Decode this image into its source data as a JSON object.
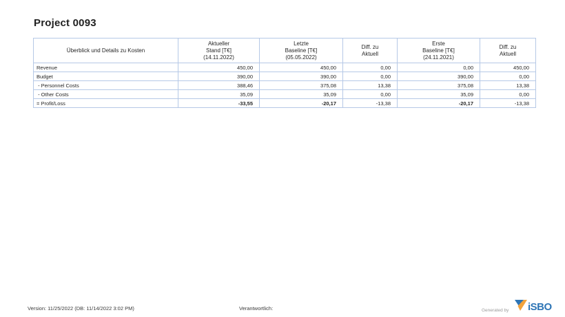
{
  "title": "Project 0093",
  "table": {
    "header": [
      "Überblick und Details zu Kosten",
      "Aktueller\nStand [T€]\n(14.11.2022)",
      "Letzte\nBaseline [T€]\n(05.05.2022)",
      "Diff. zu\nAktuell",
      "Erste\nBaseline [T€]\n(24.11.2021)",
      "Diff. zu\nAktuell"
    ],
    "rows": [
      {
        "label": "Revenue",
        "cells": [
          {
            "text": "450,00"
          },
          {
            "text": "450,00"
          },
          {
            "text": "0,00"
          },
          {
            "text": "0,00"
          },
          {
            "text": "450,00",
            "red": true
          }
        ]
      },
      {
        "label": "Budget",
        "cells": [
          {
            "text": "390,00"
          },
          {
            "text": "390,00"
          },
          {
            "text": "0,00"
          },
          {
            "text": "390,00"
          },
          {
            "text": "0,00"
          }
        ]
      },
      {
        "label": " - Personnel Costs",
        "cells": [
          {
            "text": "388,46"
          },
          {
            "text": "375,08"
          },
          {
            "text": "13,38",
            "red": true
          },
          {
            "text": "375,08"
          },
          {
            "text": "13,38",
            "red": true
          }
        ]
      },
      {
        "label": " - Other Costs",
        "cells": [
          {
            "text": "35,09"
          },
          {
            "text": "35,09"
          },
          {
            "text": "0,00"
          },
          {
            "text": "35,09"
          },
          {
            "text": "0,00"
          }
        ]
      },
      {
        "label": "= Profit/Loss",
        "cells": [
          {
            "text": "-33,55",
            "red": true,
            "bold": true
          },
          {
            "text": "-20,17",
            "red": true,
            "bold": true
          },
          {
            "text": "-13,38",
            "red": true
          },
          {
            "text": "-20,17",
            "red": true,
            "bold": true
          },
          {
            "text": "-13,38",
            "red": true
          }
        ]
      }
    ]
  },
  "footer": {
    "version": "Version: 11/25/2022 (DB: 11/14/2022 3:02 PM)",
    "responsible": "Verantwortlich:",
    "generated_by": "Generated by",
    "logo_text": "iSBO"
  },
  "colors": {
    "accent_red": "#ff0000",
    "border_blue": "#b5c8e6",
    "logo_blue": "#2e75b6",
    "logo_orange": "#f2a33c"
  }
}
